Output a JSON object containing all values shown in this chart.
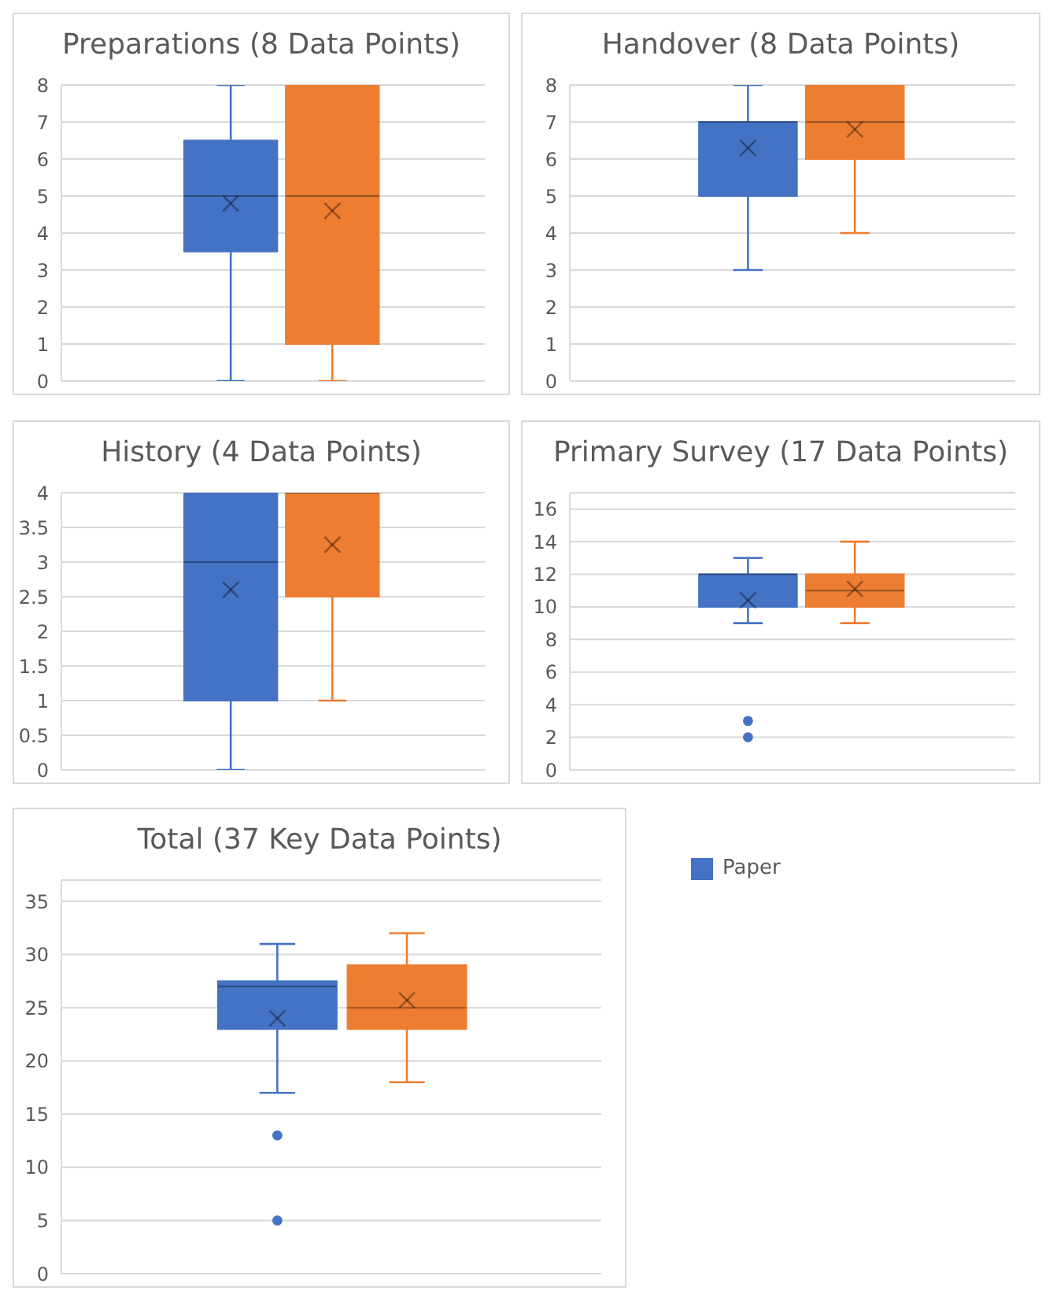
{
  "chart_data": [
    {
      "type": "box",
      "title": "Preparations (8 Data Points)",
      "categories": [
        null
      ],
      "ylim": [
        0,
        8
      ],
      "yticks": [
        0,
        1,
        2,
        3,
        4,
        5,
        6,
        7,
        8
      ],
      "grid": "y",
      "series": [
        {
          "color": "#4472c4",
          "boxes": [
            {
              "low": 0,
              "q1": 3.5,
              "median": 5,
              "q3": 6.5,
              "high": 8,
              "mean": 4.8
            }
          ]
        },
        {
          "color": "#ed7d31",
          "boxes": [
            {
              "low": 0,
              "q1": 1,
              "median": 5,
              "q3": 8,
              "high": 8,
              "mean": 4.6
            }
          ]
        }
      ]
    },
    {
      "type": "box",
      "title": "Handover (8 Data Points)",
      "categories": [
        null
      ],
      "ylim": [
        0,
        8
      ],
      "yticks": [
        0,
        1,
        2,
        3,
        4,
        5,
        6,
        7,
        8
      ],
      "grid": "y",
      "series": [
        {
          "color": "#4472c4",
          "boxes": [
            {
              "low": 3,
              "q1": 5,
              "median": 7,
              "q3": 7,
              "high": 8,
              "mean": 6.3
            }
          ]
        },
        {
          "color": "#ed7d31",
          "boxes": [
            {
              "low": 4,
              "q1": 6,
              "median": 7,
              "q3": 8,
              "high": 8,
              "mean": 6.8
            }
          ]
        }
      ]
    },
    {
      "type": "box",
      "title": "History (4 Data Points)",
      "categories": [
        null
      ],
      "ylim": [
        0,
        4
      ],
      "yticks": [
        0,
        0.5,
        1,
        1.5,
        2,
        2.5,
        3,
        3.5,
        4
      ],
      "grid": "y",
      "series": [
        {
          "color": "#4472c4",
          "boxes": [
            {
              "low": 0,
              "q1": 1,
              "median": 3,
              "q3": 4,
              "high": 4,
              "mean": 2.6
            }
          ]
        },
        {
          "color": "#ed7d31",
          "boxes": [
            {
              "low": 1,
              "q1": 2.5,
              "median": 4,
              "q3": 4,
              "high": 4,
              "mean": 3.25
            }
          ]
        }
      ]
    },
    {
      "type": "box",
      "title": "Primary Survey (17 Data Points)",
      "categories": [
        null
      ],
      "ylim": [
        0,
        17
      ],
      "yticks": [
        0,
        2,
        4,
        6,
        8,
        10,
        12,
        14,
        16
      ],
      "grid": "y",
      "series": [
        {
          "color": "#4472c4",
          "boxes": [
            {
              "low": 9,
              "q1": 10,
              "median": 12,
              "q3": 12,
              "high": 13,
              "mean": 10.4,
              "outliers": [
                3,
                2
              ]
            }
          ]
        },
        {
          "color": "#ed7d31",
          "boxes": [
            {
              "low": 9,
              "q1": 10,
              "median": 11,
              "q3": 12,
              "high": 14,
              "mean": 11.1
            }
          ]
        }
      ]
    },
    {
      "type": "box",
      "title": "Total (37 Key Data Points)",
      "categories": [
        null
      ],
      "ylim": [
        0,
        37
      ],
      "yticks": [
        0,
        5,
        10,
        15,
        20,
        25,
        30,
        35
      ],
      "grid": "y",
      "legend": "right",
      "series": [
        {
          "name": "Paper",
          "color": "#4472c4",
          "boxes": [
            {
              "low": 17,
              "q1": 23,
              "median": 27,
              "q3": 27.5,
              "high": 31,
              "mean": 24,
              "outliers": [
                13,
                5
              ]
            }
          ]
        },
        {
          "color": "#ed7d31",
          "boxes": [
            {
              "low": 18,
              "q1": 23,
              "median": 25,
              "q3": 29,
              "high": 32,
              "mean": 25.7
            }
          ]
        }
      ]
    }
  ]
}
